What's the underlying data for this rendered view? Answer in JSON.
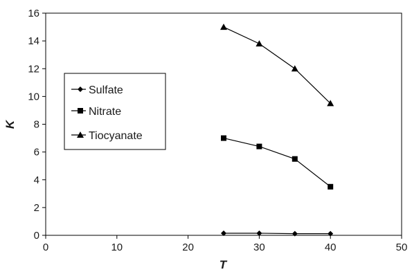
{
  "chart_data": {
    "type": "line",
    "title": "",
    "xlabel": "T",
    "ylabel": "K",
    "xlim": [
      0,
      50
    ],
    "ylim": [
      0,
      16
    ],
    "x_ticks": [
      0,
      10,
      20,
      30,
      40,
      50
    ],
    "y_ticks": [
      0,
      2,
      4,
      6,
      8,
      10,
      12,
      14,
      16
    ],
    "x_tick_labels": [
      "0",
      "10",
      "20",
      "30",
      "40",
      "50"
    ],
    "y_tick_labels": [
      "0",
      "2",
      "4",
      "6",
      "8",
      "10",
      "12",
      "14",
      "16"
    ],
    "grid": false,
    "legend_position": "left",
    "series": [
      {
        "name": "Sulfate",
        "marker": "diamond",
        "color": "#000000",
        "x": [
          25,
          30,
          35,
          40
        ],
        "y": [
          0.15,
          0.15,
          0.12,
          0.12
        ]
      },
      {
        "name": "Nitrate",
        "marker": "square",
        "color": "#000000",
        "x": [
          25,
          30,
          35,
          40
        ],
        "y": [
          7.0,
          6.4,
          5.5,
          3.5
        ]
      },
      {
        "name": "Tiocyanate",
        "marker": "triangle",
        "color": "#000000",
        "x": [
          25,
          30,
          35,
          40
        ],
        "y": [
          15.0,
          13.8,
          12.0,
          9.5
        ]
      }
    ]
  }
}
